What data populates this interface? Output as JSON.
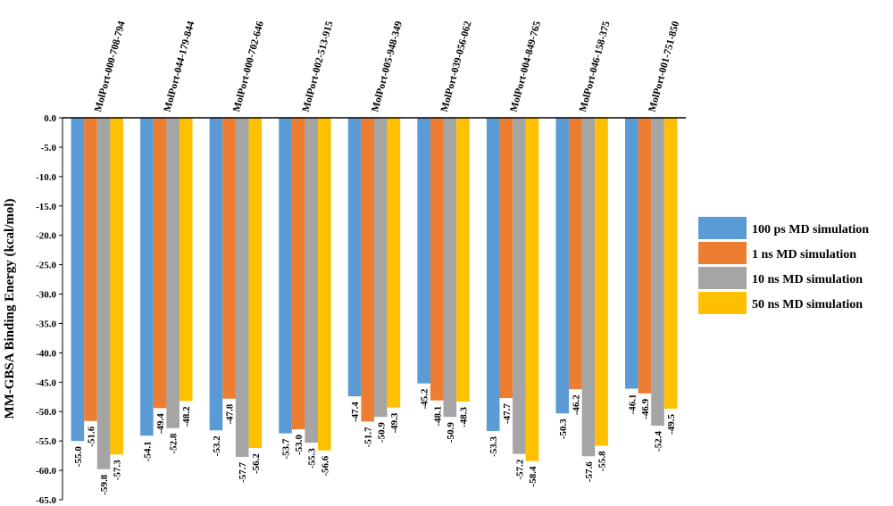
{
  "chart_data": {
    "type": "bar",
    "ylabel": "MM-GBSA Binding Energy (kcal/mol)",
    "ylim": [
      -65,
      0
    ],
    "yticks": [
      "0.0",
      "-5.0",
      "-10.0",
      "-15.0",
      "-20.0",
      "-25.0",
      "-30.0",
      "-35.0",
      "-40.0",
      "-45.0",
      "-50.0",
      "-55.0",
      "-60.0",
      "-65.0"
    ],
    "ytick_values": [
      0,
      -5,
      -10,
      -15,
      -20,
      -25,
      -30,
      -35,
      -40,
      -45,
      -50,
      -55,
      -60,
      -65
    ],
    "categories": [
      "MolPort-000-708-794",
      "MolPort-044-179-844",
      "MolPort-000-702-646",
      "MolPort-002-513-915",
      "MolPort-005-948-349",
      "MolPort-039-056-062",
      "MolPort-004-849-765",
      "MolPort-046-158-375",
      "MolPort-001-751-850"
    ],
    "series": [
      {
        "name": "100 ps MD simulation",
        "color": "#5B9BD5",
        "values": [
          -55.0,
          -54.1,
          -53.2,
          -53.7,
          -47.4,
          -45.2,
          -53.3,
          -50.3,
          -46.1
        ],
        "labels": [
          "-55.0",
          "-54.1",
          "-53.2",
          "-53.7",
          "-47.4",
          "-45.2",
          "-53.3",
          "-50.3",
          "-46.1"
        ]
      },
      {
        "name": "1 ns MD simulation",
        "color": "#ED7D31",
        "values": [
          -51.6,
          -49.4,
          -47.8,
          -53.0,
          -51.7,
          -48.1,
          -47.7,
          -46.2,
          -46.9
        ],
        "labels": [
          "-51.6",
          "-49.4",
          "-47.8",
          "-53.0",
          "-51.7",
          "-48.1",
          "-47.7",
          "-46.2",
          "-46.9"
        ]
      },
      {
        "name": "10 ns MD simulation",
        "color": "#A5A5A5",
        "values": [
          -59.8,
          -52.8,
          -57.7,
          -55.3,
          -50.9,
          -50.9,
          -57.2,
          -57.6,
          -52.4
        ],
        "labels": [
          "-59.8",
          "-52.8",
          "-57.7",
          "-55.3",
          "-50.9",
          "-50.9",
          "-57.2",
          "-57.6",
          "-52.4"
        ]
      },
      {
        "name": "50 ns MD simulation",
        "color": "#FFC000",
        "values": [
          -57.3,
          -48.2,
          -56.2,
          -56.6,
          -49.3,
          -48.3,
          -58.4,
          -55.8,
          -49.5
        ],
        "labels": [
          "-57.3",
          "-48.2",
          "-56.2",
          "-56.6",
          "-49.3",
          "-48.3",
          "-58.4",
          "-55.8",
          "-49.5"
        ]
      }
    ],
    "legend_position": "right",
    "grid": false
  }
}
